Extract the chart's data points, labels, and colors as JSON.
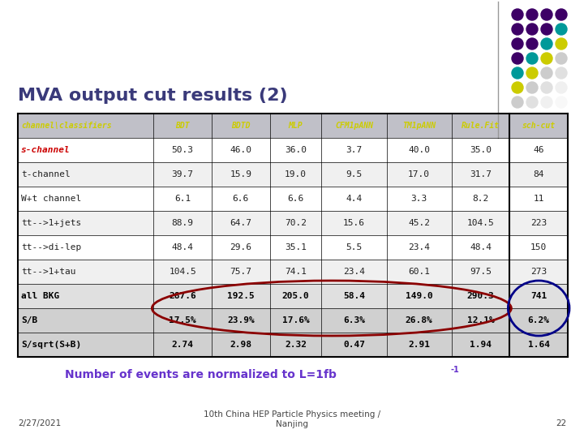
{
  "title": "MVA output cut results (2)",
  "title_color": "#3a3a7a",
  "title_fontsize": 16,
  "background_color": "#ffffff",
  "columns": [
    "channel\\classifiers",
    "BDT",
    "BDTD",
    "MLP",
    "CFM1pANN",
    "TM1pANN",
    "Rule.Fit",
    "sch-cut"
  ],
  "header_text_color": "#cccc00",
  "header_bg": "#c8c8c8",
  "rows": [
    [
      "s-channel",
      "50.3",
      "46.0",
      "36.0",
      "3.7",
      "40.0",
      "35.0",
      "46"
    ],
    [
      "t-channel",
      "39.7",
      "15.9",
      "19.0",
      "9.5",
      "17.0",
      "31.7",
      "84"
    ],
    [
      "W+t channel",
      "6.1",
      "6.6",
      "6.6",
      "4.4",
      "3.3",
      "8.2",
      "11"
    ],
    [
      "tt-->1+jets",
      "88.9",
      "64.7",
      "70.2",
      "15.6",
      "45.2",
      "104.5",
      "223"
    ],
    [
      "tt-->di-lep",
      "48.4",
      "29.6",
      "35.1",
      "5.5",
      "23.4",
      "48.4",
      "150"
    ],
    [
      "tt-->1+tau",
      "104.5",
      "75.7",
      "74.1",
      "23.4",
      "60.1",
      "97.5",
      "273"
    ],
    [
      "all BKG",
      "287.6",
      "192.5",
      "205.0",
      "58.4",
      "149.0",
      "290.3",
      "741"
    ],
    [
      "S/B",
      "17.5%",
      "23.9%",
      "17.6%",
      "6.3%",
      "26.8%",
      "12.1%",
      "6.2%"
    ],
    [
      "S/sqrt(S+B)",
      "2.74",
      "2.98",
      "2.32",
      "0.47",
      "2.91",
      "1.94",
      "1.64"
    ]
  ],
  "oval_color_sb": "#8b0000",
  "oval_color_cut": "#000088",
  "note_color": "#6633cc",
  "footer_color": "#444444",
  "dot_layout": [
    [
      "#3d0066",
      "#3d0066",
      "#3d0066"
    ],
    [
      "#3d0066",
      "#3d0066",
      "#3d0066",
      "#009999"
    ],
    [
      "#3d0066",
      "#3d0066",
      "#009999",
      "#cccc00"
    ],
    [
      "#3d0066",
      "#009999",
      "#cccc00",
      "#cccccc"
    ],
    [
      "#009999",
      "#cccc00",
      "#cccccc",
      "#e8e8e8"
    ],
    [
      "#cccc00",
      "#cccccc",
      "#e8e8e8"
    ],
    [
      "#cccccc",
      "#e8e8e8"
    ]
  ]
}
